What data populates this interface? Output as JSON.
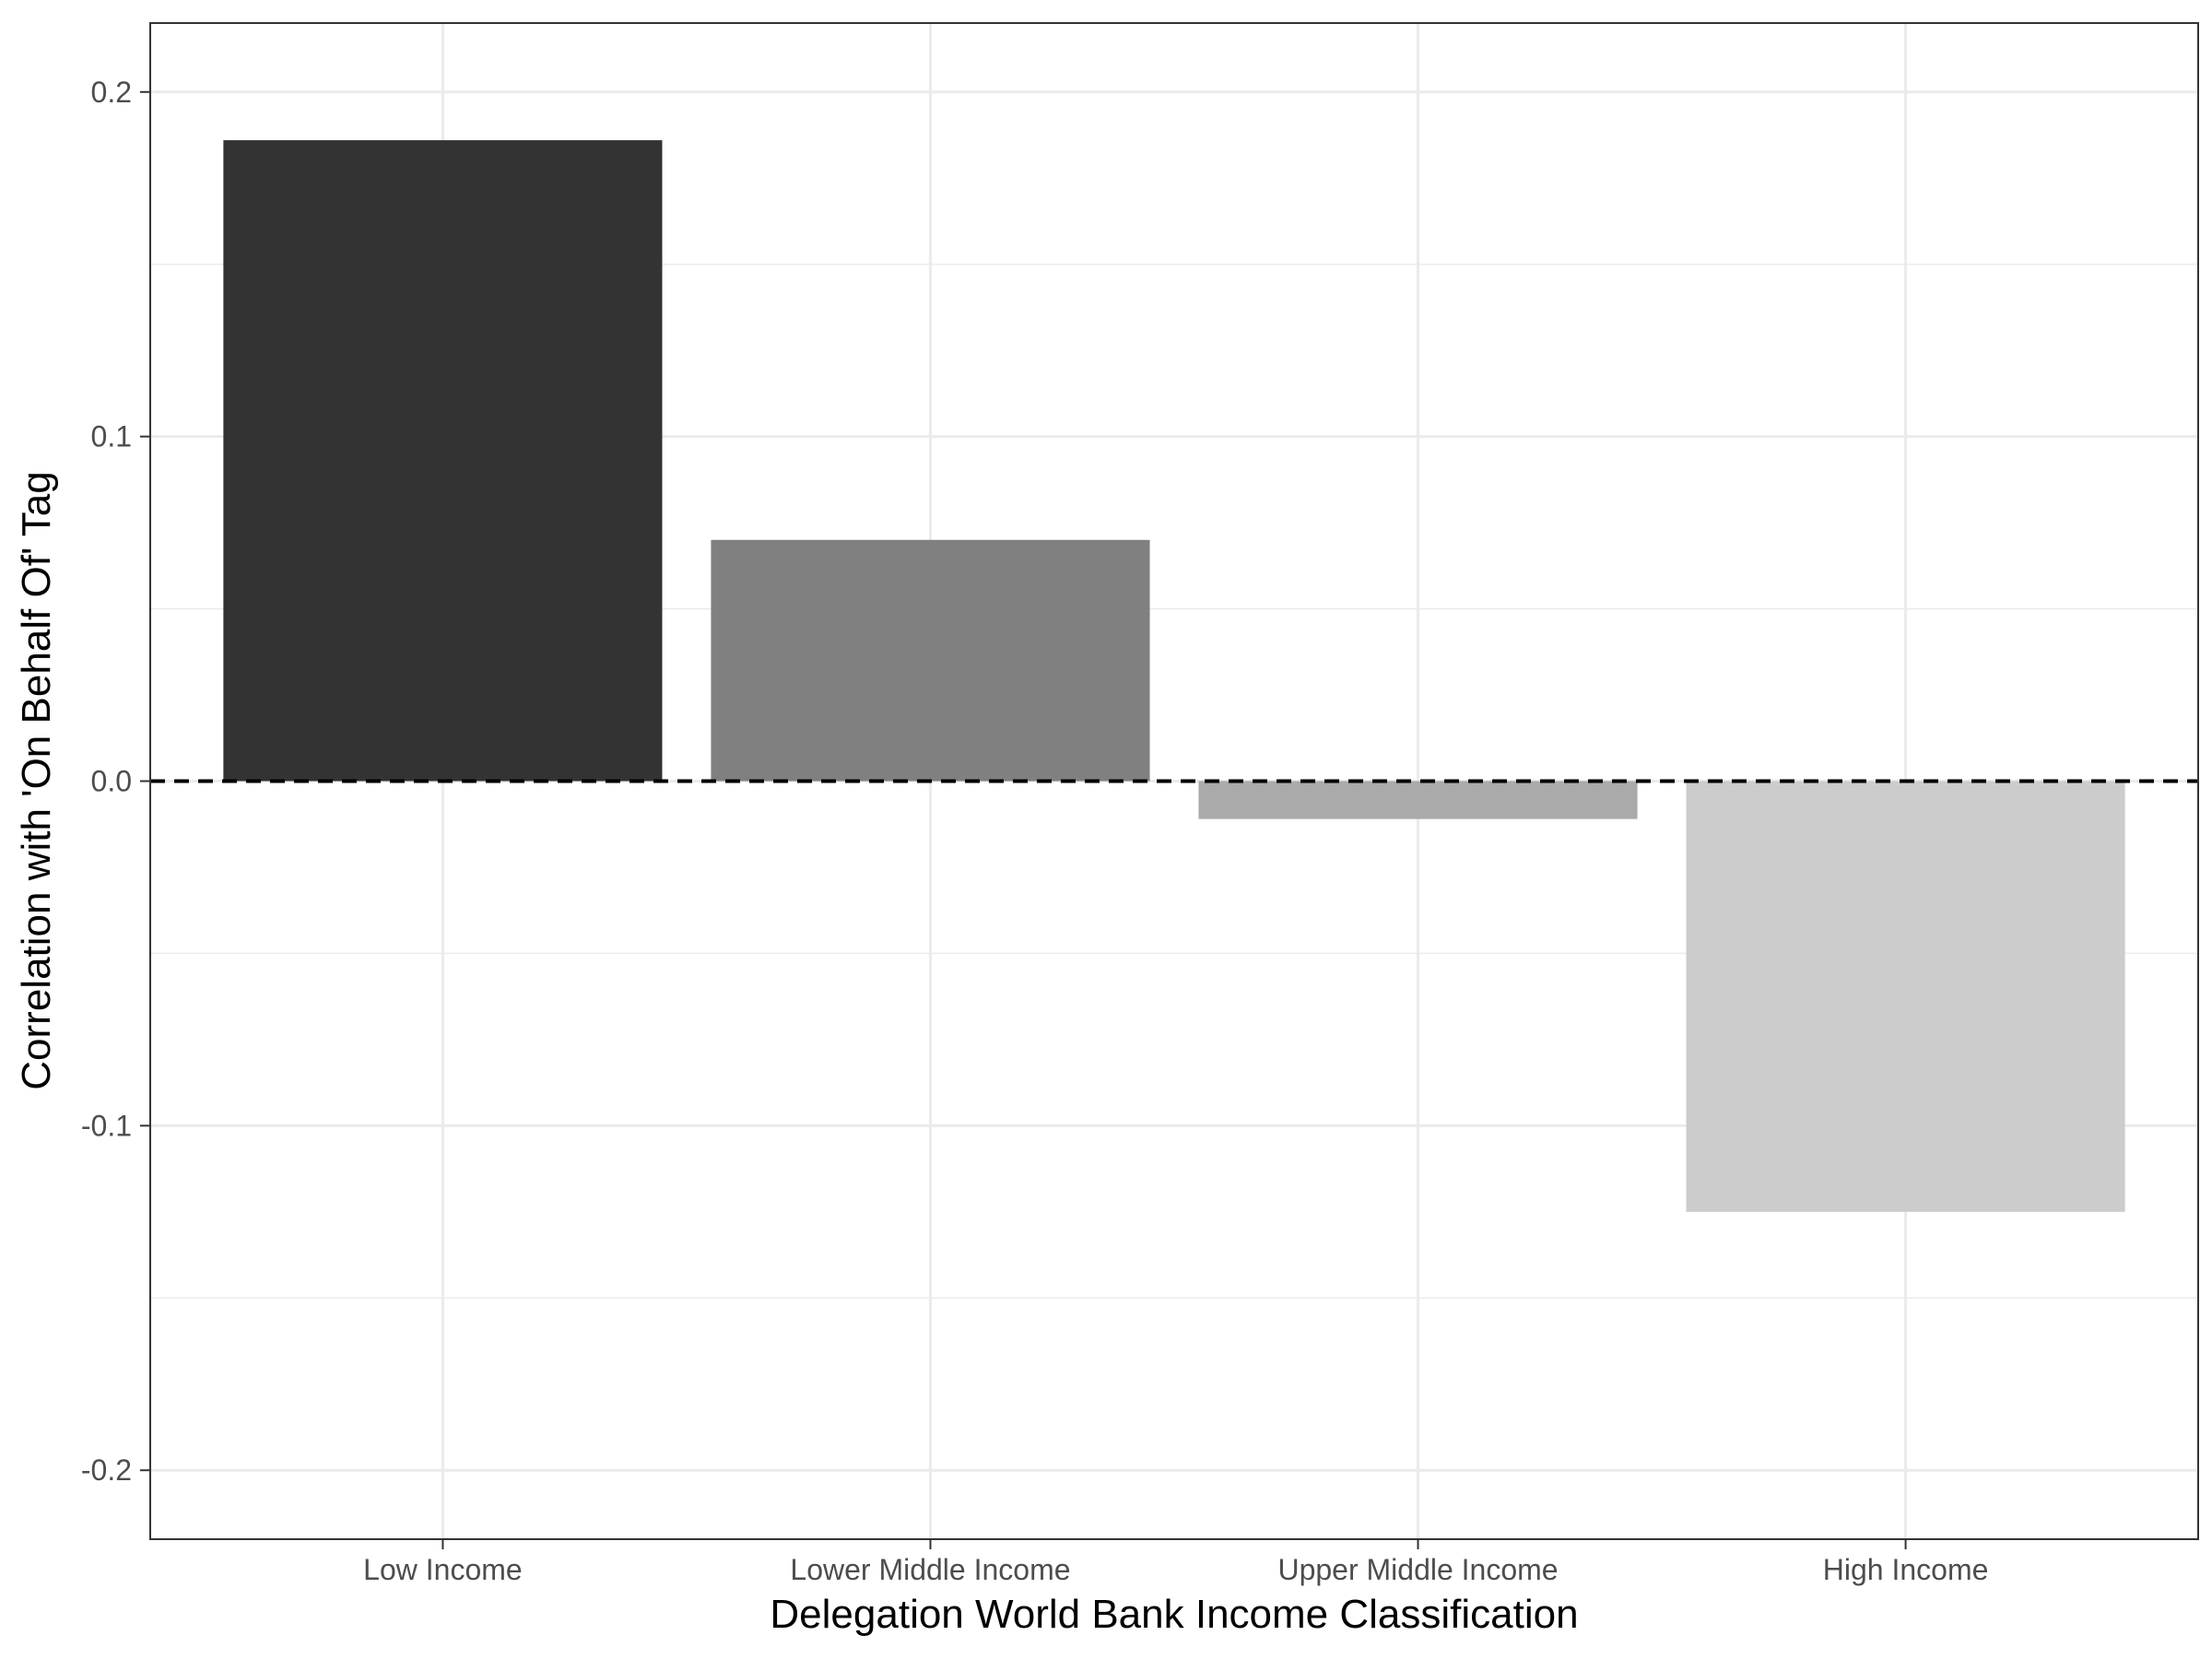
{
  "chart_data": {
    "type": "bar",
    "categories": [
      "Low Income",
      "Lower Middle Income",
      "Upper Middle Income",
      "High Income"
    ],
    "values": [
      0.186,
      0.07,
      -0.011,
      -0.125
    ],
    "xlabel": "Delegation World Bank Income Classification",
    "ylabel": "Correlation with 'On Behalf Of' Tag",
    "ylim": [
      -0.22,
      0.22
    ],
    "yticks": [
      -0.2,
      -0.1,
      0.0,
      0.1,
      0.2
    ],
    "ytick_labels": [
      "-0.2",
      "-0.1",
      "0.0",
      "0.1",
      "0.2"
    ],
    "grid": true,
    "reference_line": {
      "y": 0,
      "style": "dashed",
      "color": "#000000"
    },
    "bar_colors": [
      "#333333",
      "#808080",
      "#aaaaaa",
      "#cccccc"
    ],
    "legend": "none"
  }
}
